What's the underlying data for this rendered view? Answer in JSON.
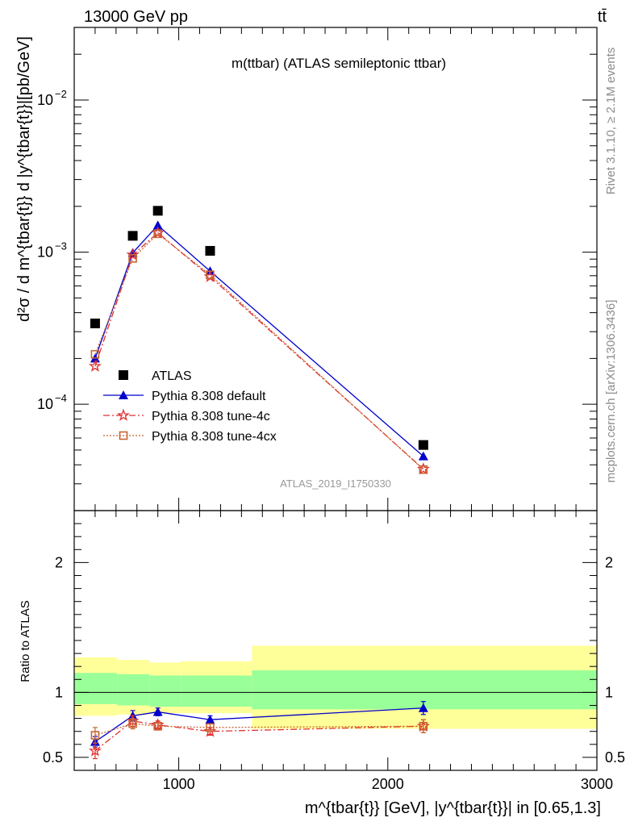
{
  "header": {
    "left": "13000 GeV pp",
    "right": "tt̄"
  },
  "side_labels": {
    "rivet": "Rivet 3.1.10, ≥ 2.1M events",
    "mcplots": "mcplots.cern.ch [arXiv:1306.3436]"
  },
  "chart_data": [
    {
      "panel": "main",
      "type": "scatter",
      "title": "m(ttbar) (ATLAS semileptonic ttbar)",
      "analysis_id": "ATLAS_2019_I1750330",
      "ylabel": "d²σ / d m^{tbar{t}} d |y^{tbar{t}}|[pb/GeV]",
      "y_scale": "log",
      "xlim": [
        500,
        3000
      ],
      "ylim": [
        2e-05,
        0.03
      ],
      "y_ticks": [
        {
          "value": 0.0001,
          "base": "10",
          "exp": "−4"
        },
        {
          "value": 0.001,
          "base": "10",
          "exp": "−3"
        },
        {
          "value": 0.01,
          "base": "10",
          "exp": "−2"
        }
      ],
      "legend_position": "bottom-left",
      "bins": [
        [
          500,
          705
        ],
        [
          705,
          860
        ],
        [
          860,
          1010
        ],
        [
          1010,
          1350
        ],
        [
          1350,
          3000
        ]
      ],
      "x": [
        600,
        780,
        900,
        1150,
        2170
      ],
      "series": [
        {
          "name": "ATLAS",
          "color": "#000000",
          "marker": "square",
          "line": "none",
          "values": [
            0.00034,
            0.00128,
            0.00187,
            0.00102,
            5.4e-05
          ]
        },
        {
          "name": "Pythia 8.308 default",
          "color": "#0000cc",
          "marker": "triangle",
          "line": "solid",
          "values": [
            0.0002,
            0.00099,
            0.0015,
            0.00075,
            4.55e-05
          ]
        },
        {
          "name": "Pythia 8.308 tune-4c",
          "color": "#e03030",
          "marker": "star",
          "line": "dashdot",
          "values": [
            0.000178,
            0.00096,
            0.00134,
            0.00069,
            3.75e-05
          ]
        },
        {
          "name": "Pythia 8.308 tune-4cx",
          "color": "#c86432",
          "marker": "open-square",
          "line": "dotted",
          "values": [
            0.000213,
            0.00091,
            0.00132,
            0.00071,
            3.72e-05
          ]
        }
      ]
    },
    {
      "panel": "ratio",
      "type": "line",
      "ylabel": "Ratio to ATLAS",
      "xlabel": "m^{tbar{t}} [GeV], |y^{tbar{t}}| in [0.65,1.3]",
      "xlim": [
        500,
        3000
      ],
      "ylim": [
        0.4,
        2.4
      ],
      "x_ticks": [
        1000,
        2000,
        3000
      ],
      "y_ticks": [
        0.5,
        1,
        2
      ],
      "bands": {
        "bins": [
          [
            500,
            705
          ],
          [
            705,
            860
          ],
          [
            860,
            1010
          ],
          [
            1010,
            1350
          ],
          [
            1350,
            3000
          ]
        ],
        "total": [
          [
            0.82,
            1.27
          ],
          [
            0.83,
            1.25
          ],
          [
            0.84,
            1.23
          ],
          [
            0.84,
            1.24
          ],
          [
            0.72,
            1.36
          ]
        ],
        "stat": [
          [
            0.91,
            1.15
          ],
          [
            0.9,
            1.14
          ],
          [
            0.89,
            1.13
          ],
          [
            0.89,
            1.13
          ],
          [
            0.87,
            1.17
          ]
        ],
        "total_color": "#ffff99",
        "stat_color": "#99ff99"
      },
      "x": [
        600,
        780,
        900,
        1150,
        2170
      ],
      "series": [
        {
          "name": "Pythia 8.308 default",
          "color": "#0000cc",
          "marker": "triangle",
          "line": "solid",
          "values": [
            0.62,
            0.82,
            0.85,
            0.79,
            0.88
          ],
          "errors": [
            0.04,
            0.04,
            0.03,
            0.03,
            0.05
          ]
        },
        {
          "name": "Pythia 8.308 tune-4c",
          "color": "#e03030",
          "marker": "star",
          "line": "dashdot",
          "values": [
            0.55,
            0.78,
            0.75,
            0.7,
            0.74
          ],
          "errors": [
            0.06,
            0.04,
            0.03,
            0.03,
            0.05
          ]
        },
        {
          "name": "Pythia 8.308 tune-4cx",
          "color": "#c86432",
          "marker": "open-square",
          "line": "dotted",
          "values": [
            0.67,
            0.76,
            0.74,
            0.73,
            0.74
          ],
          "errors": [
            0.06,
            0.04,
            0.03,
            0.03,
            0.05
          ]
        }
      ]
    }
  ]
}
